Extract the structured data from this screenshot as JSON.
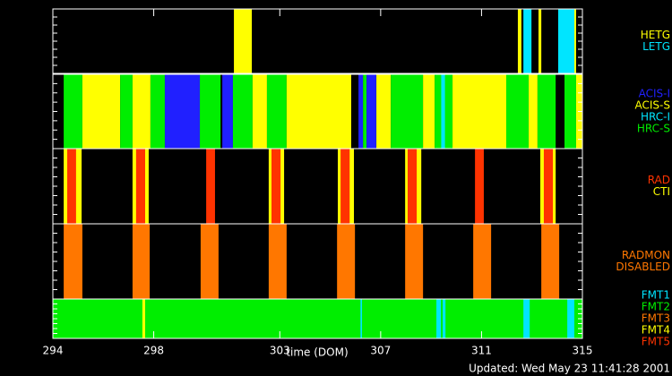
{
  "chart_data": {
    "type": "timeline",
    "xlim": [
      294,
      315
    ],
    "xticks": [
      294,
      298,
      303,
      307,
      311,
      315
    ],
    "xlabel": "time (DOM)",
    "footer": "Updated: Wed May 23 11:41:28 2001",
    "panels": [
      {
        "labels": [
          {
            "text": "HETG",
            "color": "#ffff00"
          },
          {
            "text": "LETG",
            "color": "#00e5ff"
          }
        ],
        "segments": [
          {
            "x": [
              301.18,
              301.89
            ],
            "state": 0
          },
          {
            "x": [
              312.44,
              312.58
            ],
            "state": 0
          },
          {
            "x": [
              312.66,
              312.98
            ],
            "state": 1
          },
          {
            "x": [
              313.26,
              313.37
            ],
            "state": 0
          },
          {
            "x": [
              314.04,
              314.68
            ],
            "state": 1
          },
          {
            "x": [
              314.68,
              314.75
            ],
            "state": 0
          }
        ]
      },
      {
        "labels": [
          {
            "text": "ACIS-I",
            "color": "#2020ff"
          },
          {
            "text": "ACIS-S",
            "color": "#ffff00"
          },
          {
            "text": "HRC-I",
            "color": "#00e5ff"
          },
          {
            "text": "HRC-S",
            "color": "#00ee00"
          }
        ],
        "segments": [
          {
            "x": [
              294.43,
              295.17
            ],
            "state": 3
          },
          {
            "x": [
              295.17,
              296.67
            ],
            "state": 1
          },
          {
            "x": [
              296.67,
              297.16
            ],
            "state": 3
          },
          {
            "x": [
              297.16,
              297.87
            ],
            "state": 1
          },
          {
            "x": [
              297.87,
              298.44
            ],
            "state": 3
          },
          {
            "x": [
              298.44,
              299.83
            ],
            "state": 0
          },
          {
            "x": [
              299.83,
              300.65
            ],
            "state": 3
          },
          {
            "x": [
              300.72,
              301.14
            ],
            "state": 0
          },
          {
            "x": [
              301.14,
              301.92
            ],
            "state": 3
          },
          {
            "x": [
              301.92,
              302.49
            ],
            "state": 1
          },
          {
            "x": [
              302.49,
              303.27
            ],
            "state": 3
          },
          {
            "x": [
              303.27,
              305.83
            ],
            "state": 1
          },
          {
            "x": [
              306.12,
              306.3
            ],
            "state": 0
          },
          {
            "x": [
              306.3,
              306.44
            ],
            "state": 3
          },
          {
            "x": [
              306.44,
              306.83
            ],
            "state": 0
          },
          {
            "x": [
              306.83,
              307.4
            ],
            "state": 1
          },
          {
            "x": [
              307.4,
              308.68
            ],
            "state": 3
          },
          {
            "x": [
              308.68,
              309.14
            ],
            "state": 1
          },
          {
            "x": [
              309.14,
              309.85
            ],
            "state": 3
          },
          {
            "x": [
              309.4,
              309.55
            ],
            "state": 2
          },
          {
            "x": [
              309.85,
              311.98
            ],
            "state": 1
          },
          {
            "x": [
              311.98,
              312.87
            ],
            "state": 3
          },
          {
            "x": [
              312.87,
              313.22
            ],
            "state": 1
          },
          {
            "x": [
              313.22,
              313.94
            ],
            "state": 3
          },
          {
            "x": [
              314.29,
              314.75
            ],
            "state": 3
          },
          {
            "x": [
              314.75,
              315
            ],
            "state": 1
          }
        ]
      },
      {
        "labels": [
          {
            "text": "RAD",
            "color": "#ff3300"
          },
          {
            "text": "CTI",
            "color": "#ffff00"
          }
        ],
        "segments": [
          {
            "x": [
              294.43,
              295.14
            ],
            "state": 1
          },
          {
            "x": [
              294.57,
              294.92
            ],
            "state": 0
          },
          {
            "x": [
              297.16,
              297.8
            ],
            "state": 1
          },
          {
            "x": [
              297.3,
              297.66
            ],
            "state": 0
          },
          {
            "x": [
              300.08,
              300.43
            ],
            "state": 0
          },
          {
            "x": [
              302.56,
              303.17
            ],
            "state": 1
          },
          {
            "x": [
              302.67,
              303.03
            ],
            "state": 0
          },
          {
            "x": [
              305.3,
              305.94
            ],
            "state": 1
          },
          {
            "x": [
              305.41,
              305.77
            ],
            "state": 0
          },
          {
            "x": [
              307.97,
              308.61
            ],
            "state": 1
          },
          {
            "x": [
              308.07,
              308.43
            ],
            "state": 0
          },
          {
            "x": [
              310.74,
              311.09
            ],
            "state": 0
          },
          {
            "x": [
              313.33,
              313.94
            ],
            "state": 1
          },
          {
            "x": [
              313.47,
              313.83
            ],
            "state": 0
          }
        ]
      },
      {
        "labels": [
          {
            "text": "RADMON",
            "color": "#ff7700"
          },
          {
            "text": "DISABLED",
            "color": "#ff7700"
          }
        ],
        "segments": [
          {
            "x": [
              294.43,
              295.17
            ],
            "state": 0
          },
          {
            "x": [
              297.16,
              297.84
            ],
            "state": 0
          },
          {
            "x": [
              299.86,
              300.57
            ],
            "state": 0
          },
          {
            "x": [
              302.56,
              303.27
            ],
            "state": 0
          },
          {
            "x": [
              305.27,
              305.98
            ],
            "state": 0
          },
          {
            "x": [
              307.97,
              308.68
            ],
            "state": 0
          },
          {
            "x": [
              310.67,
              311.38
            ],
            "state": 0
          },
          {
            "x": [
              313.37,
              314.08
            ],
            "state": 0
          }
        ]
      },
      {
        "labels": [
          {
            "text": "FMT1",
            "color": "#00e5ff"
          },
          {
            "text": "FMT2",
            "color": "#00ee00"
          },
          {
            "text": "FMT3",
            "color": "#ff7700"
          },
          {
            "text": "FMT4",
            "color": "#ffff00"
          },
          {
            "text": "FMT5",
            "color": "#ff3300"
          }
        ],
        "segments": [
          {
            "x": [
              294,
              315
            ],
            "state": 1
          },
          {
            "x": [
              297.55,
              297.66
            ],
            "state": 3
          },
          {
            "x": [
              306.2,
              306.26
            ],
            "state": 0
          },
          {
            "x": [
              309.21,
              309.39
            ],
            "state": 0
          },
          {
            "x": [
              309.46,
              309.57
            ],
            "state": 0
          },
          {
            "x": [
              312.66,
              312.91
            ],
            "state": 0
          },
          {
            "x": [
              314.4,
              314.68
            ],
            "state": 0
          }
        ]
      }
    ]
  }
}
